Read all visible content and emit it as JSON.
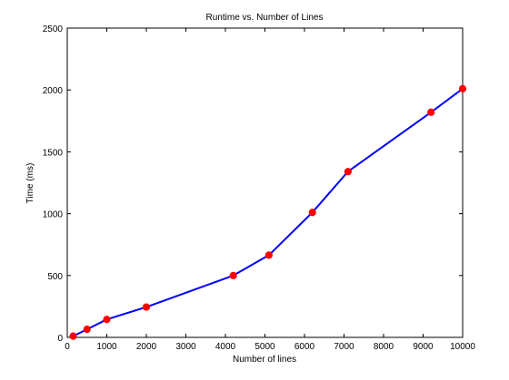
{
  "chart_data": {
    "type": "line",
    "title": "Runtime vs. Number of Lines",
    "xlabel": "Number of lines",
    "ylabel": "Time (ms)",
    "xlim": [
      0,
      10000
    ],
    "ylim": [
      0,
      2500
    ],
    "xticks": [
      0,
      1000,
      2000,
      3000,
      4000,
      5000,
      6000,
      7000,
      8000,
      9000,
      10000
    ],
    "yticks": [
      0,
      500,
      1000,
      1500,
      2000,
      2500
    ],
    "grid": false,
    "series": [
      {
        "x": [
          150,
          500,
          1000,
          2000,
          4200,
          5100,
          6200,
          7100,
          9200,
          10000
        ],
        "y": [
          10,
          65,
          145,
          245,
          500,
          665,
          1010,
          1340,
          1820,
          2010
        ],
        "line_color": "#0000ff",
        "marker_color": "#ff0000"
      }
    ]
  }
}
